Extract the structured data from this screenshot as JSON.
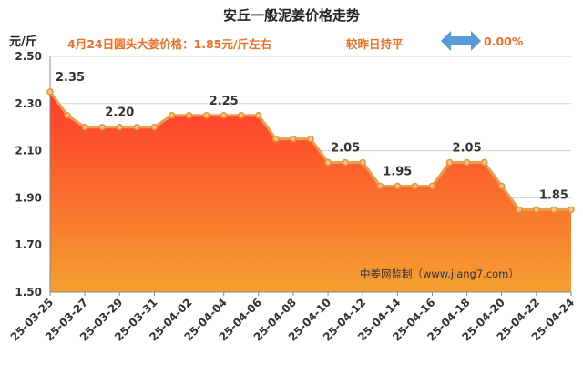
{
  "title": "安丘一般泥姜价格走势",
  "unit_label": "元/斤",
  "subline": "4月24日圆头大姜价格：1.85元/斤左右",
  "compare_label": "较昨日持平",
  "compare_pct": "0.00%",
  "watermark": "中姜网监制（www.jiang7.com）",
  "colors": {
    "line": "#e8a050",
    "fill_top": "#ff3a2a",
    "fill_bottom": "#f4a030",
    "accent": "#e8722a",
    "arrow": "#5b9bd5"
  },
  "icons": {
    "compare": "double-arrow-icon"
  },
  "chart_data": {
    "type": "area",
    "ylim": [
      1.5,
      2.5
    ],
    "yticks": [
      "1.50",
      "1.70",
      "1.90",
      "2.10",
      "2.30",
      "2.50"
    ],
    "grid": true,
    "x": [
      "25-03-25",
      "25-03-26",
      "25-03-27",
      "25-03-28",
      "25-03-29",
      "25-03-30",
      "25-03-31",
      "25-04-01",
      "25-04-02",
      "25-04-03",
      "25-04-04",
      "25-04-05",
      "25-04-06",
      "25-04-07",
      "25-04-08",
      "25-04-09",
      "25-04-10",
      "25-04-11",
      "25-04-12",
      "25-04-13",
      "25-04-14",
      "25-04-15",
      "25-04-16",
      "25-04-17",
      "25-04-18",
      "25-04-19",
      "25-04-20",
      "25-04-21",
      "25-04-22",
      "25-04-23",
      "25-04-24"
    ],
    "xticks": [
      "25-03-25",
      "25-03-27",
      "25-03-29",
      "25-03-31",
      "25-04-02",
      "25-04-04",
      "25-04-06",
      "25-04-08",
      "25-04-10",
      "25-04-12",
      "25-04-14",
      "25-04-16",
      "25-04-18",
      "25-04-20",
      "25-04-22",
      "25-04-24"
    ],
    "values": [
      2.35,
      2.25,
      2.2,
      2.2,
      2.2,
      2.2,
      2.2,
      2.25,
      2.25,
      2.25,
      2.25,
      2.25,
      2.25,
      2.15,
      2.15,
      2.15,
      2.05,
      2.05,
      2.05,
      1.95,
      1.95,
      1.95,
      1.95,
      2.05,
      2.05,
      2.05,
      1.95,
      1.85,
      1.85,
      1.85,
      1.85
    ],
    "data_labels": [
      {
        "index": 0,
        "text": "2.35"
      },
      {
        "index": 4,
        "text": "2.20"
      },
      {
        "index": 10,
        "text": "2.25"
      },
      {
        "index": 17,
        "text": "2.05"
      },
      {
        "index": 20,
        "text": "1.95"
      },
      {
        "index": 24,
        "text": "2.05"
      },
      {
        "index": 29,
        "text": "1.85"
      }
    ]
  }
}
